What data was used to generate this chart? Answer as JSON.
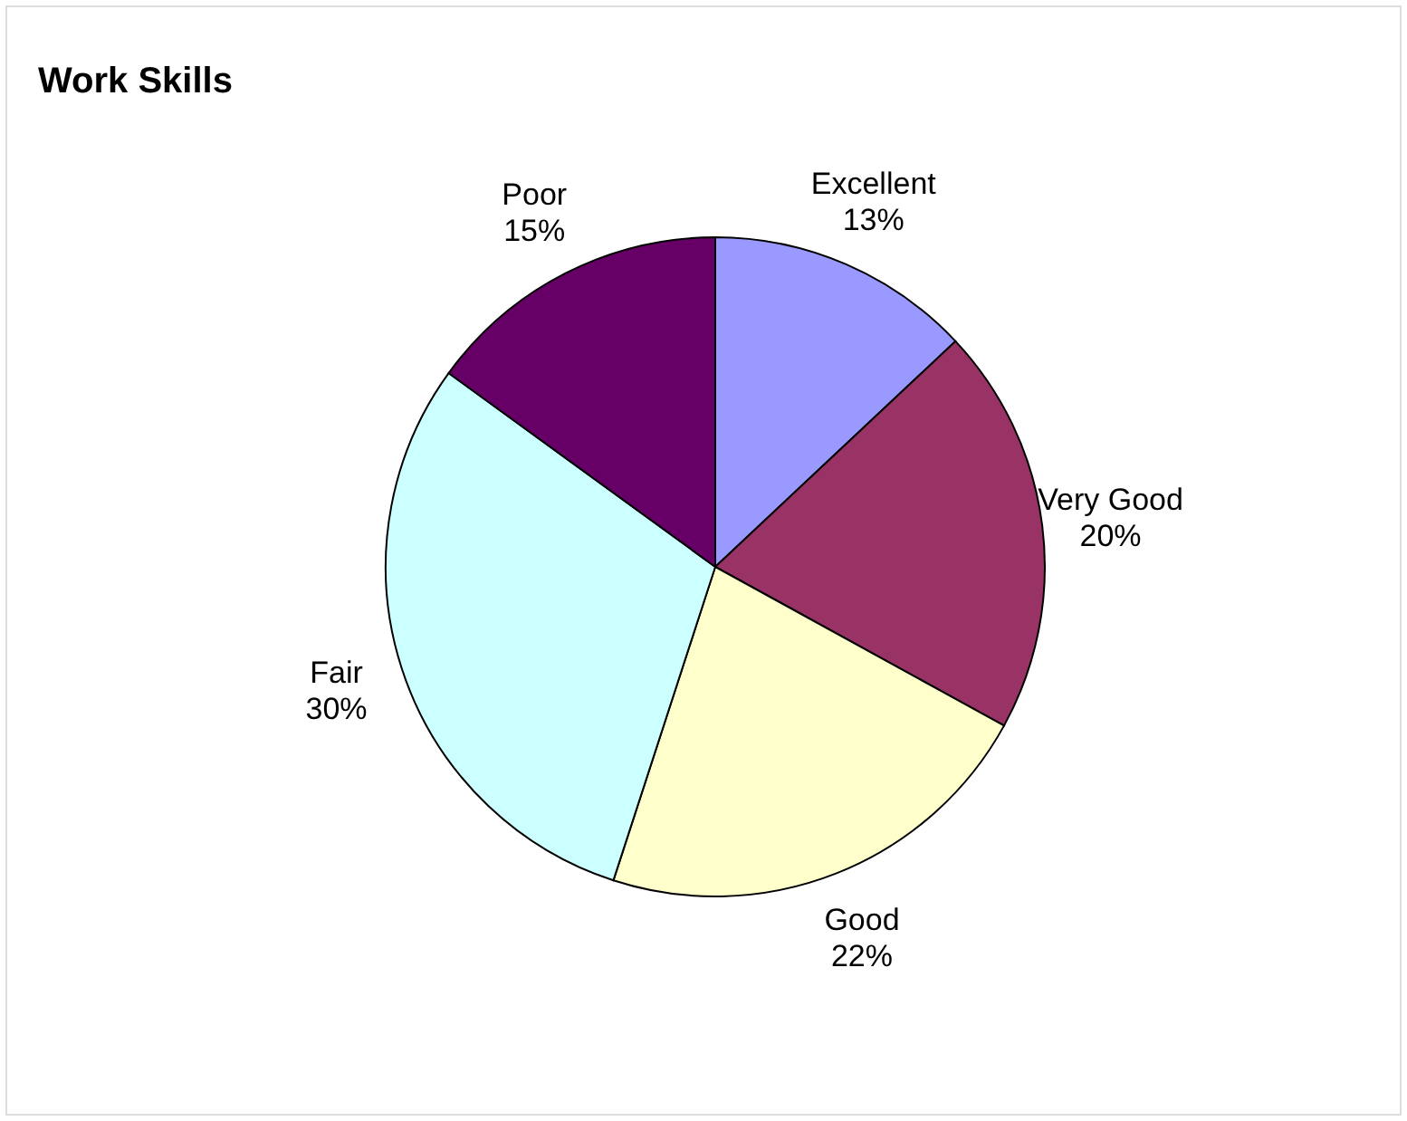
{
  "chart_data": {
    "type": "pie",
    "title": "Work Skills",
    "categories": [
      "Excellent",
      "Very Good",
      "Good",
      "Fair",
      "Poor"
    ],
    "values": [
      13,
      20,
      22,
      30,
      15
    ],
    "value_labels": [
      "13%",
      "20%",
      "22%",
      "30%",
      "15%"
    ],
    "colors": [
      "#9999ff",
      "#993366",
      "#ffffcc",
      "#ccffff",
      "#660066"
    ]
  }
}
